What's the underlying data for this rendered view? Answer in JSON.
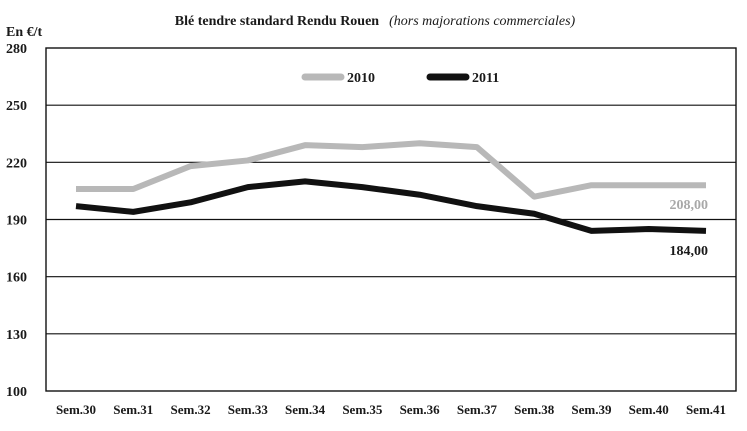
{
  "chart_data": {
    "type": "line",
    "title": "Blé tendre standard Rendu Rouen",
    "subtitle": "(hors majorations commerciales)",
    "ylabel": "En €/t",
    "xlabel": "",
    "categories": [
      "Sem.30",
      "Sem.31",
      "Sem.32",
      "Sem.33",
      "Sem.34",
      "Sem.35",
      "Sem.36",
      "Sem.37",
      "Sem.38",
      "Sem.39",
      "Sem.40",
      "Sem.41"
    ],
    "ylim": [
      100,
      280
    ],
    "yticks": [
      "100",
      "130",
      "160",
      "190",
      "220",
      "250",
      "280"
    ],
    "grid": "horizontal",
    "legend_position": "top",
    "series": [
      {
        "name": "2010",
        "color": "#b8b8b8",
        "values": [
          206,
          206,
          218,
          221,
          229,
          228,
          230,
          228,
          202,
          208,
          208,
          208
        ],
        "end_label": "208,00"
      },
      {
        "name": "2011",
        "color": "#111111",
        "values": [
          197,
          194,
          199,
          207,
          210,
          207,
          203,
          197,
          193,
          184,
          185,
          184
        ],
        "end_label": "184,00"
      }
    ]
  }
}
